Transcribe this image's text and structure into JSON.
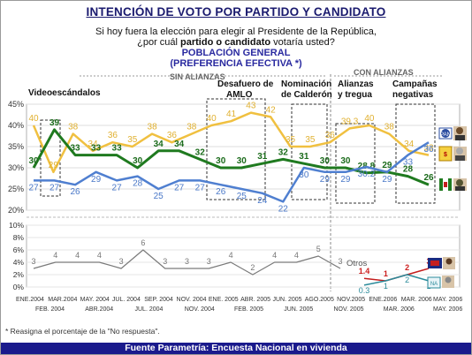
{
  "title": "INTENCIÓN DE VOTO POR PARTIDO Y CANDIDATO",
  "question_line1": "Si hoy fuera la elección para elegir al Presidente de la República,",
  "question_pre": "¿por cuál ",
  "question_bold": "partido o candidato",
  "question_post": " votaría usted?",
  "population": "POBLACIÓN GENERAL",
  "preference": "(PREFERENCIA EFECTIVA *)",
  "footnote": "* Reasigna el porcentaje de la \"No respuesta\".",
  "source": "Fuente Parametría: Encuesta Nacional en vivienda",
  "annotations": {
    "sin_alianzas": "SIN ALIANZAS",
    "con_alianzas": "CON ALIANZAS",
    "videoescandalos": "Videoescándalos",
    "desafuero_1": "Desafuero de",
    "desafuero_2": "AMLO",
    "nominacion_1": "Nominación",
    "nominacion_2": "de Calderón",
    "alianzas_1": "Alianzas",
    "alianzas_2": "y tregua",
    "campanas_1": "Campañas",
    "campanas_2": "negativas",
    "otros": "Otros"
  },
  "colors": {
    "pan": "#4f7fd0",
    "pri": "#1f7a1f",
    "prd": "#f0c040",
    "otros": "#7a7a7a",
    "red": "#c41e1e",
    "teal": "#2a8a9a",
    "label_pri": "#1b6b1b",
    "label_prd": "#e0b030",
    "label_pan": "#4a78c8",
    "label_otros": "#777777",
    "label_red": "#cc1e1e",
    "label_teal": "#2a8a9a",
    "axis_text": "#333333"
  },
  "chart_data": {
    "type": "line",
    "x_labels_top": [
      "ENE.2004",
      "MAR.2004",
      "MAY. 2004",
      "JUL. 2004",
      "SEP. 2004",
      "NOV. 2004",
      "ENE. 2005",
      "ABR. 2005",
      "JUN. 2005",
      "AGO.2005",
      "NOV.2005",
      "ENE.2006",
      "MAR. 2006",
      "MAY. 2006"
    ],
    "x_labels_bottom": [
      "FEB. 2004",
      "ABR.2004",
      "JUL. 2004",
      "NOV. 2004",
      "FEB. 2005",
      "JUN. 2005",
      "NOV. 2005",
      "MAR. 2006",
      "MAY. 2006"
    ],
    "main_y_ticks": [
      "45%",
      "40%",
      "35%",
      "30%",
      "25%",
      "20%"
    ],
    "main_ylim": [
      20,
      45
    ],
    "lower_y_ticks": [
      "10%",
      "8%",
      "6%",
      "4%",
      "2%",
      "0%"
    ],
    "lower_ylim": [
      0,
      10
    ],
    "series": [
      {
        "key": "prd",
        "values": [
          40,
          29,
          38,
          34,
          36,
          35,
          38,
          36,
          38,
          40,
          41,
          43,
          42,
          35,
          35,
          36,
          39.3,
          40,
          38,
          34,
          33
        ]
      },
      {
        "key": "pri",
        "values": [
          30,
          39,
          33,
          33,
          33,
          30,
          34,
          34,
          32,
          30,
          30,
          31,
          32,
          31,
          30,
          30,
          28.8,
          29,
          28,
          26
        ]
      },
      {
        "key": "pan",
        "values": [
          27,
          27,
          26,
          29,
          27,
          28,
          25,
          27,
          27,
          26,
          25,
          24,
          22,
          30,
          29,
          29,
          30.2,
          29,
          33,
          36
        ]
      },
      {
        "key": "otros",
        "values": [
          3,
          4,
          4,
          4,
          3,
          6,
          3,
          3,
          3,
          4,
          2,
          4,
          4,
          5,
          3
        ]
      },
      {
        "key": "red",
        "values": [
          1.4,
          1,
          2,
          3
        ]
      },
      {
        "key": "teal",
        "values": [
          0.3,
          1,
          2,
          1
        ]
      }
    ],
    "labels": {
      "prd": [
        "40",
        "29",
        "38",
        "34",
        "36",
        "35",
        "38",
        "36",
        "38",
        "40",
        "41",
        "43",
        "42",
        "35",
        "35",
        "36",
        "39.3",
        "40",
        "38",
        "34",
        "33"
      ],
      "pri": [
        "30",
        "39",
        "33",
        "33",
        "33",
        "30",
        "34",
        "34",
        "32",
        "30",
        "30",
        "31",
        "32",
        "31",
        "30",
        "30",
        "28.8",
        "29",
        "28",
        "26"
      ],
      "pan": [
        "27",
        "27",
        "26",
        "29",
        "27",
        "28",
        "25",
        "27",
        "27",
        "26",
        "25",
        "24",
        "22",
        "30",
        "29",
        "29",
        "30.2",
        "29",
        "33",
        "36"
      ],
      "otros": [
        "3",
        "4",
        "4",
        "4",
        "3",
        "6",
        "3",
        "3",
        "3",
        "4",
        "2",
        "4",
        "4",
        "5",
        "3"
      ],
      "red": [
        "1.4",
        "1",
        "2",
        "3"
      ],
      "teal": [
        "0.3",
        "1",
        "2",
        "1"
      ]
    }
  }
}
